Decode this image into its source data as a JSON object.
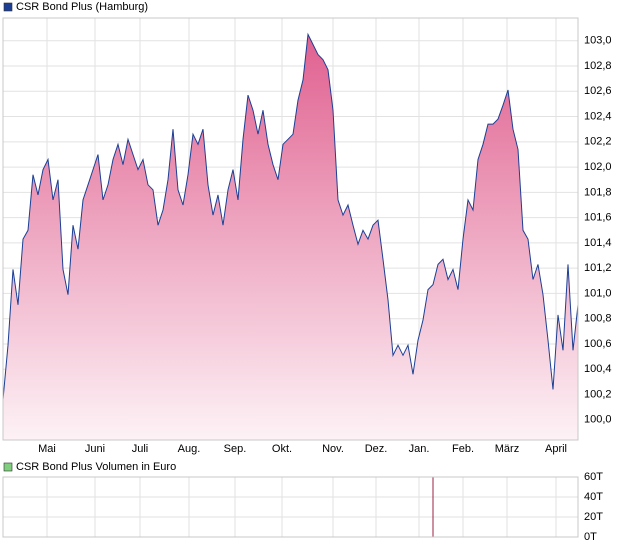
{
  "chart_data": [
    {
      "type": "area",
      "series": [
        {
          "name": "CSR Bond Plus (Hamburg)",
          "color": "#1c3f94",
          "values": [
            100.16,
            100.59,
            101.19,
            100.91,
            101.43,
            101.5,
            101.94,
            101.78,
            101.98,
            102.06,
            101.74,
            101.9,
            101.19,
            100.99,
            101.54,
            101.35,
            101.74,
            101.86,
            101.98,
            102.1,
            101.74,
            101.86,
            102.06,
            102.18,
            102.02,
            102.22,
            102.1,
            101.98,
            102.06,
            101.86,
            101.82,
            101.54,
            101.66,
            101.9,
            102.3,
            101.82,
            101.7,
            101.94,
            102.26,
            102.18,
            102.3,
            101.86,
            101.62,
            101.78,
            101.54,
            101.82,
            101.98,
            101.74,
            102.22,
            102.57,
            102.45,
            102.26,
            102.45,
            102.18,
            102.02,
            101.9,
            102.18,
            102.22,
            102.26,
            102.53,
            102.69,
            103.05,
            102.97,
            102.89,
            102.85,
            102.77,
            102.45,
            101.74,
            101.62,
            101.7,
            101.54,
            101.39,
            101.5,
            101.43,
            101.54,
            101.58,
            101.27,
            100.95,
            100.51,
            100.59,
            100.51,
            100.59,
            100.36,
            100.63,
            100.79,
            101.03,
            101.07,
            101.23,
            101.27,
            101.11,
            101.19,
            101.03,
            101.43,
            101.74,
            101.66,
            102.06,
            102.18,
            102.34,
            102.34,
            102.38,
            102.49,
            102.61,
            102.3,
            102.14,
            101.5,
            101.43,
            101.11,
            101.23,
            100.99,
            100.63,
            100.24,
            100.83,
            100.55,
            101.23,
            100.55,
            100.91
          ]
        }
      ],
      "fill_top": "#e0608f",
      "fill_bottom": "#fdf2f6",
      "xlim": [
        0,
        115
      ],
      "xticks": [
        {
          "value": 8.8,
          "label": "Mai"
        },
        {
          "value": 18.4,
          "label": "Juni"
        },
        {
          "value": 27.4,
          "label": "Juli"
        },
        {
          "value": 37.2,
          "label": "Aug."
        },
        {
          "value": 46.4,
          "label": "Sep."
        },
        {
          "value": 55.8,
          "label": "Okt."
        },
        {
          "value": 66,
          "label": "Nov."
        },
        {
          "value": 74.6,
          "label": "Dez."
        },
        {
          "value": 83.2,
          "label": "Jan."
        },
        {
          "value": 92,
          "label": "Feb."
        },
        {
          "value": 100.8,
          "label": "März"
        },
        {
          "value": 110.6,
          "label": "April"
        }
      ],
      "ylim": [
        99.84,
        103.18
      ],
      "yticks": [
        {
          "value": 100.0,
          "label": "100,0"
        },
        {
          "value": 100.2,
          "label": "100,2"
        },
        {
          "value": 100.4,
          "label": "100,4"
        },
        {
          "value": 100.6,
          "label": "100,6"
        },
        {
          "value": 100.8,
          "label": "100,8"
        },
        {
          "value": 101.0,
          "label": "101,0"
        },
        {
          "value": 101.2,
          "label": "101,2"
        },
        {
          "value": 101.4,
          "label": "101,4"
        },
        {
          "value": 101.6,
          "label": "101,6"
        },
        {
          "value": 101.8,
          "label": "101,8"
        },
        {
          "value": 102.0,
          "label": "102,0"
        },
        {
          "value": 102.2,
          "label": "102,2"
        },
        {
          "value": 102.4,
          "label": "102,4"
        },
        {
          "value": 102.6,
          "label": "102,6"
        },
        {
          "value": 102.8,
          "label": "102,8"
        },
        {
          "value": 103.0,
          "label": "103,0"
        }
      ],
      "grid": true
    },
    {
      "type": "bar",
      "series": [
        {
          "name": "CSR Bond Plus Volumen in Euro",
          "color": "#9a2040",
          "legend_color": "#7fcf7f",
          "values": [
            0,
            0,
            0,
            0,
            0,
            0,
            0,
            0,
            0,
            0,
            0,
            0,
            0,
            0,
            0,
            0,
            0,
            0,
            0,
            0,
            0,
            0,
            0,
            0,
            0,
            0,
            0,
            0,
            0,
            0,
            0,
            0,
            0,
            0,
            0,
            0,
            0,
            0,
            0,
            0,
            0,
            0,
            0,
            0,
            0,
            0,
            0,
            0,
            0,
            0,
            0,
            0,
            0,
            0,
            0,
            0,
            0,
            0,
            0,
            0,
            0,
            0,
            0,
            0,
            0,
            0,
            0,
            0,
            0,
            0,
            0,
            0,
            0,
            0,
            0,
            0,
            0,
            0,
            0,
            0,
            0,
            0,
            0,
            0,
            0,
            0,
            60000,
            0,
            0,
            0,
            0,
            0,
            0,
            0,
            0,
            0,
            0,
            0,
            0,
            0,
            0,
            0,
            0,
            0,
            0,
            0,
            0,
            0,
            0,
            0,
            0,
            0,
            0,
            0,
            0,
            0
          ]
        }
      ],
      "xlim": [
        0,
        115
      ],
      "ylim": [
        0,
        60000
      ],
      "yticks": [
        {
          "value": 0,
          "label": "0T"
        },
        {
          "value": 20000,
          "label": "20T"
        },
        {
          "value": 40000,
          "label": "40T"
        },
        {
          "value": 60000,
          "label": "60T"
        }
      ],
      "grid": true
    }
  ]
}
